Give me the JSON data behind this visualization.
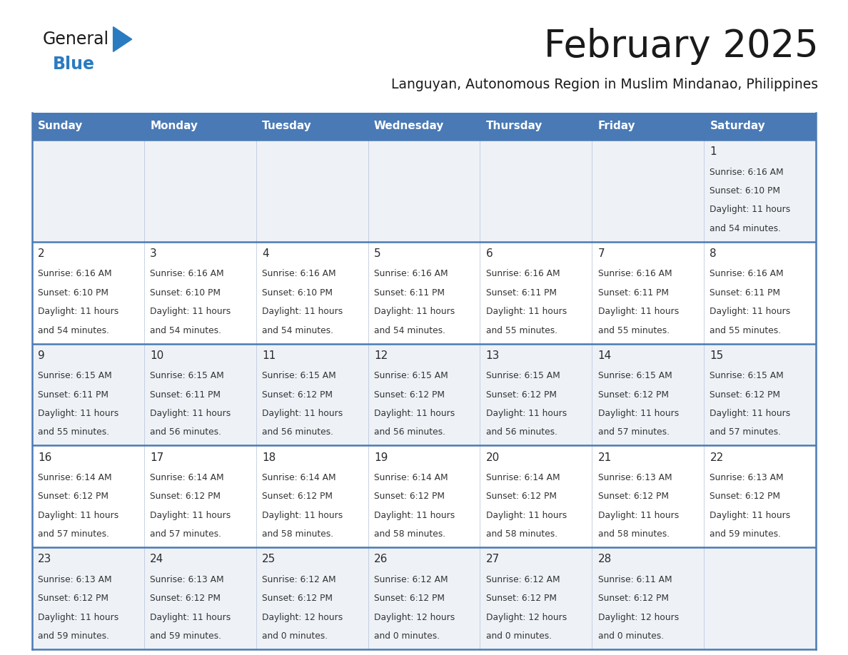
{
  "title": "February 2025",
  "subtitle": "Languyan, Autonomous Region in Muslim Mindanao, Philippines",
  "header_bg": "#4a7ab5",
  "header_text": "#ffffff",
  "row_bg_even": "#eef2f7",
  "row_bg_odd": "#ffffff",
  "separator_color": "#4a7ab5",
  "cell_border_color": "#b0c0d8",
  "day_headers": [
    "Sunday",
    "Monday",
    "Tuesday",
    "Wednesday",
    "Thursday",
    "Friday",
    "Saturday"
  ],
  "days": [
    {
      "day": 1,
      "col": 6,
      "row": 0,
      "sunrise": "6:16 AM",
      "sunset": "6:10 PM",
      "daylight_h": "11 hours",
      "daylight_m": "and 54 minutes."
    },
    {
      "day": 2,
      "col": 0,
      "row": 1,
      "sunrise": "6:16 AM",
      "sunset": "6:10 PM",
      "daylight_h": "11 hours",
      "daylight_m": "and 54 minutes."
    },
    {
      "day": 3,
      "col": 1,
      "row": 1,
      "sunrise": "6:16 AM",
      "sunset": "6:10 PM",
      "daylight_h": "11 hours",
      "daylight_m": "and 54 minutes."
    },
    {
      "day": 4,
      "col": 2,
      "row": 1,
      "sunrise": "6:16 AM",
      "sunset": "6:10 PM",
      "daylight_h": "11 hours",
      "daylight_m": "and 54 minutes."
    },
    {
      "day": 5,
      "col": 3,
      "row": 1,
      "sunrise": "6:16 AM",
      "sunset": "6:11 PM",
      "daylight_h": "11 hours",
      "daylight_m": "and 54 minutes."
    },
    {
      "day": 6,
      "col": 4,
      "row": 1,
      "sunrise": "6:16 AM",
      "sunset": "6:11 PM",
      "daylight_h": "11 hours",
      "daylight_m": "and 55 minutes."
    },
    {
      "day": 7,
      "col": 5,
      "row": 1,
      "sunrise": "6:16 AM",
      "sunset": "6:11 PM",
      "daylight_h": "11 hours",
      "daylight_m": "and 55 minutes."
    },
    {
      "day": 8,
      "col": 6,
      "row": 1,
      "sunrise": "6:16 AM",
      "sunset": "6:11 PM",
      "daylight_h": "11 hours",
      "daylight_m": "and 55 minutes."
    },
    {
      "day": 9,
      "col": 0,
      "row": 2,
      "sunrise": "6:15 AM",
      "sunset": "6:11 PM",
      "daylight_h": "11 hours",
      "daylight_m": "and 55 minutes."
    },
    {
      "day": 10,
      "col": 1,
      "row": 2,
      "sunrise": "6:15 AM",
      "sunset": "6:11 PM",
      "daylight_h": "11 hours",
      "daylight_m": "and 56 minutes."
    },
    {
      "day": 11,
      "col": 2,
      "row": 2,
      "sunrise": "6:15 AM",
      "sunset": "6:12 PM",
      "daylight_h": "11 hours",
      "daylight_m": "and 56 minutes."
    },
    {
      "day": 12,
      "col": 3,
      "row": 2,
      "sunrise": "6:15 AM",
      "sunset": "6:12 PM",
      "daylight_h": "11 hours",
      "daylight_m": "and 56 minutes."
    },
    {
      "day": 13,
      "col": 4,
      "row": 2,
      "sunrise": "6:15 AM",
      "sunset": "6:12 PM",
      "daylight_h": "11 hours",
      "daylight_m": "and 56 minutes."
    },
    {
      "day": 14,
      "col": 5,
      "row": 2,
      "sunrise": "6:15 AM",
      "sunset": "6:12 PM",
      "daylight_h": "11 hours",
      "daylight_m": "and 57 minutes."
    },
    {
      "day": 15,
      "col": 6,
      "row": 2,
      "sunrise": "6:15 AM",
      "sunset": "6:12 PM",
      "daylight_h": "11 hours",
      "daylight_m": "and 57 minutes."
    },
    {
      "day": 16,
      "col": 0,
      "row": 3,
      "sunrise": "6:14 AM",
      "sunset": "6:12 PM",
      "daylight_h": "11 hours",
      "daylight_m": "and 57 minutes."
    },
    {
      "day": 17,
      "col": 1,
      "row": 3,
      "sunrise": "6:14 AM",
      "sunset": "6:12 PM",
      "daylight_h": "11 hours",
      "daylight_m": "and 57 minutes."
    },
    {
      "day": 18,
      "col": 2,
      "row": 3,
      "sunrise": "6:14 AM",
      "sunset": "6:12 PM",
      "daylight_h": "11 hours",
      "daylight_m": "and 58 minutes."
    },
    {
      "day": 19,
      "col": 3,
      "row": 3,
      "sunrise": "6:14 AM",
      "sunset": "6:12 PM",
      "daylight_h": "11 hours",
      "daylight_m": "and 58 minutes."
    },
    {
      "day": 20,
      "col": 4,
      "row": 3,
      "sunrise": "6:14 AM",
      "sunset": "6:12 PM",
      "daylight_h": "11 hours",
      "daylight_m": "and 58 minutes."
    },
    {
      "day": 21,
      "col": 5,
      "row": 3,
      "sunrise": "6:13 AM",
      "sunset": "6:12 PM",
      "daylight_h": "11 hours",
      "daylight_m": "and 58 minutes."
    },
    {
      "day": 22,
      "col": 6,
      "row": 3,
      "sunrise": "6:13 AM",
      "sunset": "6:12 PM",
      "daylight_h": "11 hours",
      "daylight_m": "and 59 minutes."
    },
    {
      "day": 23,
      "col": 0,
      "row": 4,
      "sunrise": "6:13 AM",
      "sunset": "6:12 PM",
      "daylight_h": "11 hours",
      "daylight_m": "and 59 minutes."
    },
    {
      "day": 24,
      "col": 1,
      "row": 4,
      "sunrise": "6:13 AM",
      "sunset": "6:12 PM",
      "daylight_h": "11 hours",
      "daylight_m": "and 59 minutes."
    },
    {
      "day": 25,
      "col": 2,
      "row": 4,
      "sunrise": "6:12 AM",
      "sunset": "6:12 PM",
      "daylight_h": "12 hours",
      "daylight_m": "and 0 minutes."
    },
    {
      "day": 26,
      "col": 3,
      "row": 4,
      "sunrise": "6:12 AM",
      "sunset": "6:12 PM",
      "daylight_h": "12 hours",
      "daylight_m": "and 0 minutes."
    },
    {
      "day": 27,
      "col": 4,
      "row": 4,
      "sunrise": "6:12 AM",
      "sunset": "6:12 PM",
      "daylight_h": "12 hours",
      "daylight_m": "and 0 minutes."
    },
    {
      "day": 28,
      "col": 5,
      "row": 4,
      "sunrise": "6:11 AM",
      "sunset": "6:12 PM",
      "daylight_h": "12 hours",
      "daylight_m": "and 0 minutes."
    }
  ],
  "num_rows": 5,
  "num_cols": 7,
  "fig_width": 11.88,
  "fig_height": 9.18,
  "dpi": 100
}
